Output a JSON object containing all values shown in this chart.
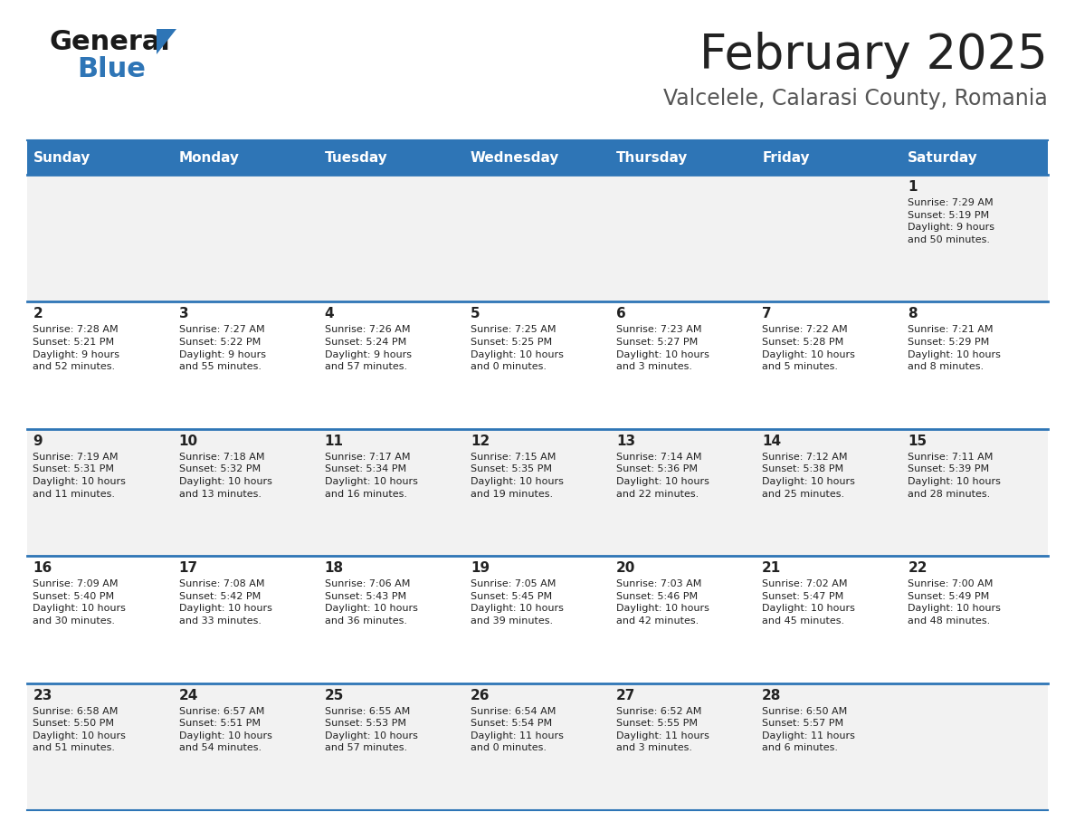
{
  "title": "February 2025",
  "subtitle": "Valcelele, Calarasi County, Romania",
  "header_bg": "#2E75B6",
  "header_text_color": "#FFFFFF",
  "cell_bg_light": "#F2F2F2",
  "cell_bg_white": "#FFFFFF",
  "divider_color": "#2E75B6",
  "text_color": "#222222",
  "days_of_week": [
    "Sunday",
    "Monday",
    "Tuesday",
    "Wednesday",
    "Thursday",
    "Friday",
    "Saturday"
  ],
  "calendar_data": [
    [
      null,
      null,
      null,
      null,
      null,
      null,
      {
        "day": "1",
        "sunrise": "7:29 AM",
        "sunset": "5:19 PM",
        "daylight": "9 hours\nand 50 minutes."
      }
    ],
    [
      {
        "day": "2",
        "sunrise": "7:28 AM",
        "sunset": "5:21 PM",
        "daylight": "9 hours\nand 52 minutes."
      },
      {
        "day": "3",
        "sunrise": "7:27 AM",
        "sunset": "5:22 PM",
        "daylight": "9 hours\nand 55 minutes."
      },
      {
        "day": "4",
        "sunrise": "7:26 AM",
        "sunset": "5:24 PM",
        "daylight": "9 hours\nand 57 minutes."
      },
      {
        "day": "5",
        "sunrise": "7:25 AM",
        "sunset": "5:25 PM",
        "daylight": "10 hours\nand 0 minutes."
      },
      {
        "day": "6",
        "sunrise": "7:23 AM",
        "sunset": "5:27 PM",
        "daylight": "10 hours\nand 3 minutes."
      },
      {
        "day": "7",
        "sunrise": "7:22 AM",
        "sunset": "5:28 PM",
        "daylight": "10 hours\nand 5 minutes."
      },
      {
        "day": "8",
        "sunrise": "7:21 AM",
        "sunset": "5:29 PM",
        "daylight": "10 hours\nand 8 minutes."
      }
    ],
    [
      {
        "day": "9",
        "sunrise": "7:19 AM",
        "sunset": "5:31 PM",
        "daylight": "10 hours\nand 11 minutes."
      },
      {
        "day": "10",
        "sunrise": "7:18 AM",
        "sunset": "5:32 PM",
        "daylight": "10 hours\nand 13 minutes."
      },
      {
        "day": "11",
        "sunrise": "7:17 AM",
        "sunset": "5:34 PM",
        "daylight": "10 hours\nand 16 minutes."
      },
      {
        "day": "12",
        "sunrise": "7:15 AM",
        "sunset": "5:35 PM",
        "daylight": "10 hours\nand 19 minutes."
      },
      {
        "day": "13",
        "sunrise": "7:14 AM",
        "sunset": "5:36 PM",
        "daylight": "10 hours\nand 22 minutes."
      },
      {
        "day": "14",
        "sunrise": "7:12 AM",
        "sunset": "5:38 PM",
        "daylight": "10 hours\nand 25 minutes."
      },
      {
        "day": "15",
        "sunrise": "7:11 AM",
        "sunset": "5:39 PM",
        "daylight": "10 hours\nand 28 minutes."
      }
    ],
    [
      {
        "day": "16",
        "sunrise": "7:09 AM",
        "sunset": "5:40 PM",
        "daylight": "10 hours\nand 30 minutes."
      },
      {
        "day": "17",
        "sunrise": "7:08 AM",
        "sunset": "5:42 PM",
        "daylight": "10 hours\nand 33 minutes."
      },
      {
        "day": "18",
        "sunrise": "7:06 AM",
        "sunset": "5:43 PM",
        "daylight": "10 hours\nand 36 minutes."
      },
      {
        "day": "19",
        "sunrise": "7:05 AM",
        "sunset": "5:45 PM",
        "daylight": "10 hours\nand 39 minutes."
      },
      {
        "day": "20",
        "sunrise": "7:03 AM",
        "sunset": "5:46 PM",
        "daylight": "10 hours\nand 42 minutes."
      },
      {
        "day": "21",
        "sunrise": "7:02 AM",
        "sunset": "5:47 PM",
        "daylight": "10 hours\nand 45 minutes."
      },
      {
        "day": "22",
        "sunrise": "7:00 AM",
        "sunset": "5:49 PM",
        "daylight": "10 hours\nand 48 minutes."
      }
    ],
    [
      {
        "day": "23",
        "sunrise": "6:58 AM",
        "sunset": "5:50 PM",
        "daylight": "10 hours\nand 51 minutes."
      },
      {
        "day": "24",
        "sunrise": "6:57 AM",
        "sunset": "5:51 PM",
        "daylight": "10 hours\nand 54 minutes."
      },
      {
        "day": "25",
        "sunrise": "6:55 AM",
        "sunset": "5:53 PM",
        "daylight": "10 hours\nand 57 minutes."
      },
      {
        "day": "26",
        "sunrise": "6:54 AM",
        "sunset": "5:54 PM",
        "daylight": "11 hours\nand 0 minutes."
      },
      {
        "day": "27",
        "sunrise": "6:52 AM",
        "sunset": "5:55 PM",
        "daylight": "11 hours\nand 3 minutes."
      },
      {
        "day": "28",
        "sunrise": "6:50 AM",
        "sunset": "5:57 PM",
        "daylight": "11 hours\nand 6 minutes."
      },
      null
    ]
  ]
}
